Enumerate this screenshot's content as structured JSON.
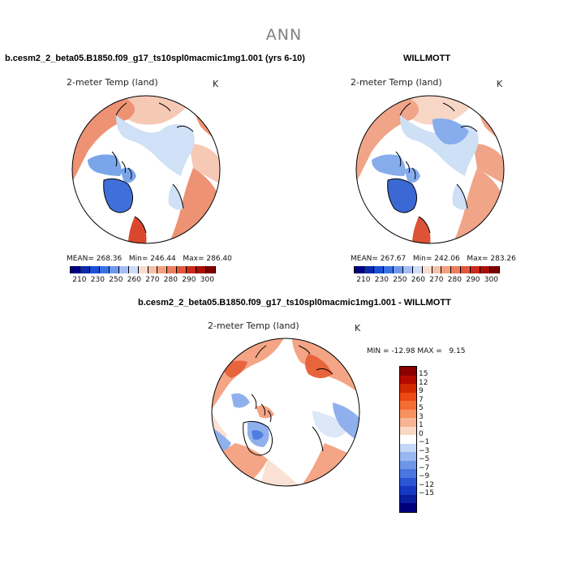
{
  "main_title": "ANN",
  "case_name": "b.cesm2_2_beta05.B1850.f09_g17_ts10spl0macmic1mg1.001 (yrs 6-10)",
  "obs_name": "WILLMOTT",
  "diff_title": "b.cesm2_2_beta05.B1850.f09_g17_ts10spl0macmic1mg1.001 - WILLMOTT",
  "variable": "2-meter Temp (land)",
  "units": "K",
  "panels": {
    "model": {
      "mean": "268.36",
      "min": "246.44",
      "max": "286.40"
    },
    "obs": {
      "mean": "267.67",
      "min": "242.06",
      "max": "283.26"
    },
    "diff": {
      "min": "-12.98",
      "max": "9.15"
    }
  },
  "stat_labels": {
    "mean": "MEAN=",
    "min": "Min=",
    "max": "Max=",
    "diff_min": "MIN =",
    "diff_max": "MAX ="
  },
  "abs_colorbar": {
    "labels": [
      "210",
      "230",
      "250",
      "260",
      "270",
      "280",
      "290",
      "300"
    ],
    "colors": [
      "#00007f",
      "#0a2aa8",
      "#1a4fd6",
      "#3a72e6",
      "#6e98ee",
      "#a3bdf5",
      "#cfdcf8",
      "#f6ddd0",
      "#f7c1a6",
      "#f4a080",
      "#ee7d5c",
      "#e4553a",
      "#cc2a18",
      "#a80f05",
      "#7a0000"
    ]
  },
  "diff_colorbar": {
    "labels": [
      "15",
      "12",
      "9",
      "7",
      "5",
      "3",
      "1",
      "0",
      "−1",
      "−3",
      "−5",
      "−7",
      "−9",
      "−12",
      "−15"
    ],
    "colors": [
      "#8b0000",
      "#b40a00",
      "#d42800",
      "#ec4a12",
      "#f56d34",
      "#f8915e",
      "#f8b595",
      "#fbd8c4",
      "#ffffff",
      "#c4d7f5",
      "#99b8ef",
      "#6f97e8",
      "#4a76e0",
      "#2a55d6",
      "#1538c2",
      "#0a1ea0",
      "#00007f"
    ]
  },
  "map_colors": {
    "model": {
      "warm": "#ee9274",
      "hot": "#d9482e",
      "mild": "#f6c9b5",
      "cool": "#cfe0f7",
      "cold": "#7aa5ea",
      "colder": "#3f6fd8"
    },
    "obs": {
      "warm": "#f0a488",
      "hot": "#dc5336",
      "mild": "#f8d6c6",
      "cool": "#cde0f6",
      "cold": "#86acec",
      "colder": "#3c68d4"
    },
    "diff": {
      "warm": "#f4a585",
      "hot": "#e8643d",
      "mild": "#fbe1d3",
      "cool": "#dce8f8",
      "cold": "#8fb0ec",
      "colder": "#4f7ee0"
    }
  }
}
